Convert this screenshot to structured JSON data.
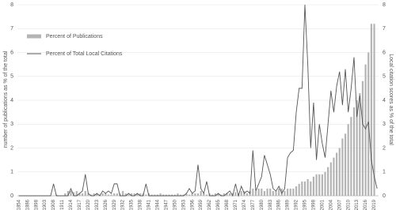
{
  "chart_data": {
    "type": "bar",
    "y_label": "number of publications as % of the total",
    "y2_label": "Local citation scores as % of the total",
    "categories": [
      1854,
      null,
      null,
      1886,
      null,
      null,
      1898,
      null,
      null,
      1903,
      null,
      null,
      1908,
      null,
      null,
      1911,
      null,
      null,
      1914,
      null,
      null,
      1917,
      null,
      null,
      1920,
      null,
      null,
      1923,
      null,
      null,
      1926,
      null,
      null,
      1929,
      null,
      null,
      1932,
      null,
      null,
      1935,
      null,
      null,
      1938,
      null,
      null,
      1941,
      null,
      null,
      1944,
      null,
      null,
      1947,
      null,
      null,
      1950,
      null,
      null,
      1953,
      null,
      null,
      1956,
      null,
      null,
      1959,
      null,
      null,
      1962,
      null,
      null,
      1965,
      null,
      null,
      1968,
      null,
      null,
      1971,
      null,
      null,
      1974,
      null,
      null,
      1977,
      null,
      null,
      1980,
      null,
      null,
      1983,
      null,
      null,
      1986,
      null,
      null,
      1989,
      null,
      null,
      1992,
      null,
      null,
      1995,
      null,
      null,
      1998,
      null,
      null,
      2001,
      null,
      null,
      2004,
      null,
      null,
      2007,
      null,
      null,
      2010,
      null,
      null,
      2013,
      null,
      null,
      2016,
      null,
      null,
      2019,
      null
    ],
    "series": [
      {
        "name": "Percent of Publications",
        "type": "bar",
        "color": "#b4b4b4",
        "values": [
          0,
          0,
          0,
          0,
          0,
          0,
          0,
          0,
          0,
          0,
          0,
          0,
          0,
          0.05,
          0,
          0,
          0.1,
          0.2,
          0.2,
          0.15,
          0.2,
          0.1,
          0.1,
          0.2,
          0.1,
          0.05,
          0.1,
          0.1,
          0.05,
          0.1,
          0.1,
          0.05,
          0.05,
          0.1,
          0.1,
          0.1,
          0.2,
          0.1,
          0.05,
          0.1,
          0.1,
          0.1,
          0.1,
          0.1,
          0.05,
          0.1,
          0.05,
          0.05,
          0.05,
          0.1,
          0.05,
          0.05,
          0.05,
          0.05,
          0.05,
          0.1,
          0.05,
          0.05,
          0.1,
          0.05,
          0.1,
          0.1,
          0.1,
          0.2,
          0.1,
          0.05,
          0.1,
          0.05,
          0.1,
          0.1,
          0.05,
          0.1,
          0.1,
          0.1,
          0.1,
          0.15,
          0.1,
          0.2,
          0.2,
          0.1,
          0.2,
          0.3,
          0.2,
          0.3,
          0.3,
          0.2,
          0.3,
          0.3,
          0.2,
          0.2,
          0.3,
          0.3,
          0.2,
          0.3,
          0.3,
          0.3,
          0.4,
          0.5,
          0.6,
          0.6,
          0.7,
          0.6,
          0.8,
          0.9,
          0.9,
          0.9,
          1,
          1.2,
          1.4,
          1.6,
          1.8,
          2,
          2.4,
          2.6,
          3,
          3.3,
          3.7,
          4,
          4.3,
          4.8,
          5.5,
          6,
          7.2,
          7.2,
          0
        ]
      },
      {
        "name": "Percent of Total Local Citations",
        "type": "line",
        "axis": "y2",
        "color": "#555555",
        "values": [
          0,
          0,
          0,
          0,
          0,
          0,
          0,
          0,
          0,
          0,
          0,
          0,
          0.5,
          0,
          0,
          0,
          0,
          0,
          0.3,
          0,
          0,
          0.1,
          0.2,
          0.9,
          0.1,
          0,
          0,
          0.1,
          0,
          0.2,
          0.1,
          0.2,
          0.1,
          0.5,
          0.5,
          0,
          0,
          0,
          0.1,
          0,
          0,
          0.1,
          0,
          0,
          0.5,
          0,
          0,
          0,
          0,
          0,
          0,
          0,
          0,
          0,
          0,
          0,
          0,
          0,
          0.1,
          0.3,
          0.1,
          0.2,
          1.3,
          0.3,
          0.1,
          0.6,
          0,
          0,
          0,
          0.1,
          0,
          0,
          0.1,
          0.2,
          0,
          0.5,
          0,
          0.4,
          0.1,
          0.2,
          0.1,
          1.9,
          0.2,
          0.5,
          0.8,
          1.7,
          1.3,
          0.9,
          0.3,
          0.2,
          0.4,
          0.1,
          0.3,
          1.6,
          1.8,
          1.9,
          3.5,
          4.5,
          4.5,
          8,
          5.5,
          2,
          3.9,
          1.5,
          3,
          2.2,
          1.6,
          3,
          4.4,
          3.5,
          4.6,
          5.2,
          3.8,
          5.3,
          3.5,
          4.5,
          5.8,
          3.3,
          4.2,
          3,
          2.8,
          3.1,
          1.5,
          0.8,
          0.3
        ]
      }
    ],
    "ylim": [
      0,
      8
    ],
    "yticks": [
      0,
      1,
      2,
      3,
      4,
      5,
      6,
      7,
      8
    ],
    "y2lim": [
      0,
      8
    ],
    "y2ticks": [
      0,
      1,
      2,
      3,
      4,
      5,
      6,
      7,
      8
    ],
    "grid": true,
    "legend": "upper left"
  }
}
